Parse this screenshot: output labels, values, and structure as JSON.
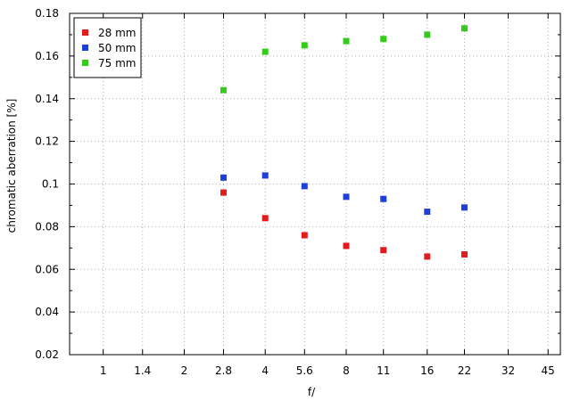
{
  "chart_data": {
    "type": "scatter",
    "xlabel": "f/",
    "ylabel": "chromatic aberration [%]",
    "x_scale": "log",
    "x_ticks": [
      "1",
      "1.4",
      "2",
      "2.8",
      "4",
      "5.6",
      "8",
      "11",
      "16",
      "22",
      "32",
      "45"
    ],
    "x_tick_values": [
      1,
      1.4,
      2,
      2.8,
      4,
      5.6,
      8,
      11,
      16,
      22,
      32,
      45
    ],
    "xlim": [
      0.75,
      50
    ],
    "ylim": [
      0.02,
      0.18
    ],
    "y_ticks": [
      "0.02",
      "0.04",
      "0.06",
      "0.08",
      "0.1",
      "0.12",
      "0.14",
      "0.16",
      "0.18"
    ],
    "y_tick_values": [
      0.02,
      0.04,
      0.06,
      0.08,
      0.1,
      0.12,
      0.14,
      0.16,
      0.18
    ],
    "grid": true,
    "legend_position": "top-left",
    "x": [
      2.8,
      4,
      5.6,
      8,
      11,
      16,
      22
    ],
    "series": [
      {
        "name": "28 mm",
        "color": "#e41a1c",
        "values": [
          0.096,
          0.084,
          0.076,
          0.071,
          0.069,
          0.066,
          0.067
        ]
      },
      {
        "name": "50 mm",
        "color": "#1f3fd8",
        "values": [
          0.103,
          0.104,
          0.099,
          0.094,
          0.093,
          0.087,
          0.089
        ]
      },
      {
        "name": "75 mm",
        "color": "#33cc1a",
        "values": [
          0.144,
          0.162,
          0.165,
          0.167,
          0.168,
          0.17,
          0.173
        ]
      }
    ]
  }
}
